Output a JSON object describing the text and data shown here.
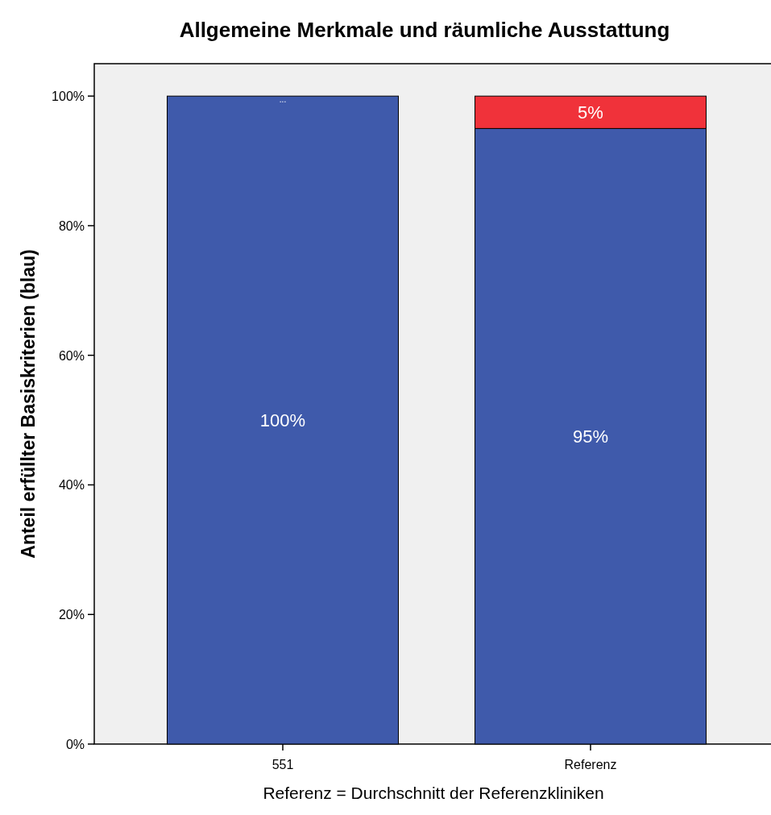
{
  "chart_data": {
    "type": "bar",
    "title": "Allgemeine Merkmale und räumliche Ausstattung",
    "xlabel": "Referenz = Durchschnitt der Referenzkliniken",
    "ylabel": "Anteil erfüllter Basiskriterien (blau)",
    "categories": [
      "551",
      "Referenz"
    ],
    "stacked": true,
    "series": [
      {
        "color": "#3f5aab",
        "values": [
          100,
          95
        ],
        "value_labels": [
          "100%",
          "95%"
        ]
      },
      {
        "color": "#f0323a",
        "values": [
          0,
          5
        ],
        "value_labels": [
          "...",
          "5%"
        ]
      }
    ],
    "ylim": [
      0,
      105
    ],
    "yticks": [
      {
        "value": 0,
        "label": "0%"
      },
      {
        "value": 20,
        "label": "20%"
      },
      {
        "value": 40,
        "label": "40%"
      },
      {
        "value": 60,
        "label": "60%"
      },
      {
        "value": 80,
        "label": "80%"
      },
      {
        "value": 100,
        "label": "100%"
      }
    ]
  }
}
